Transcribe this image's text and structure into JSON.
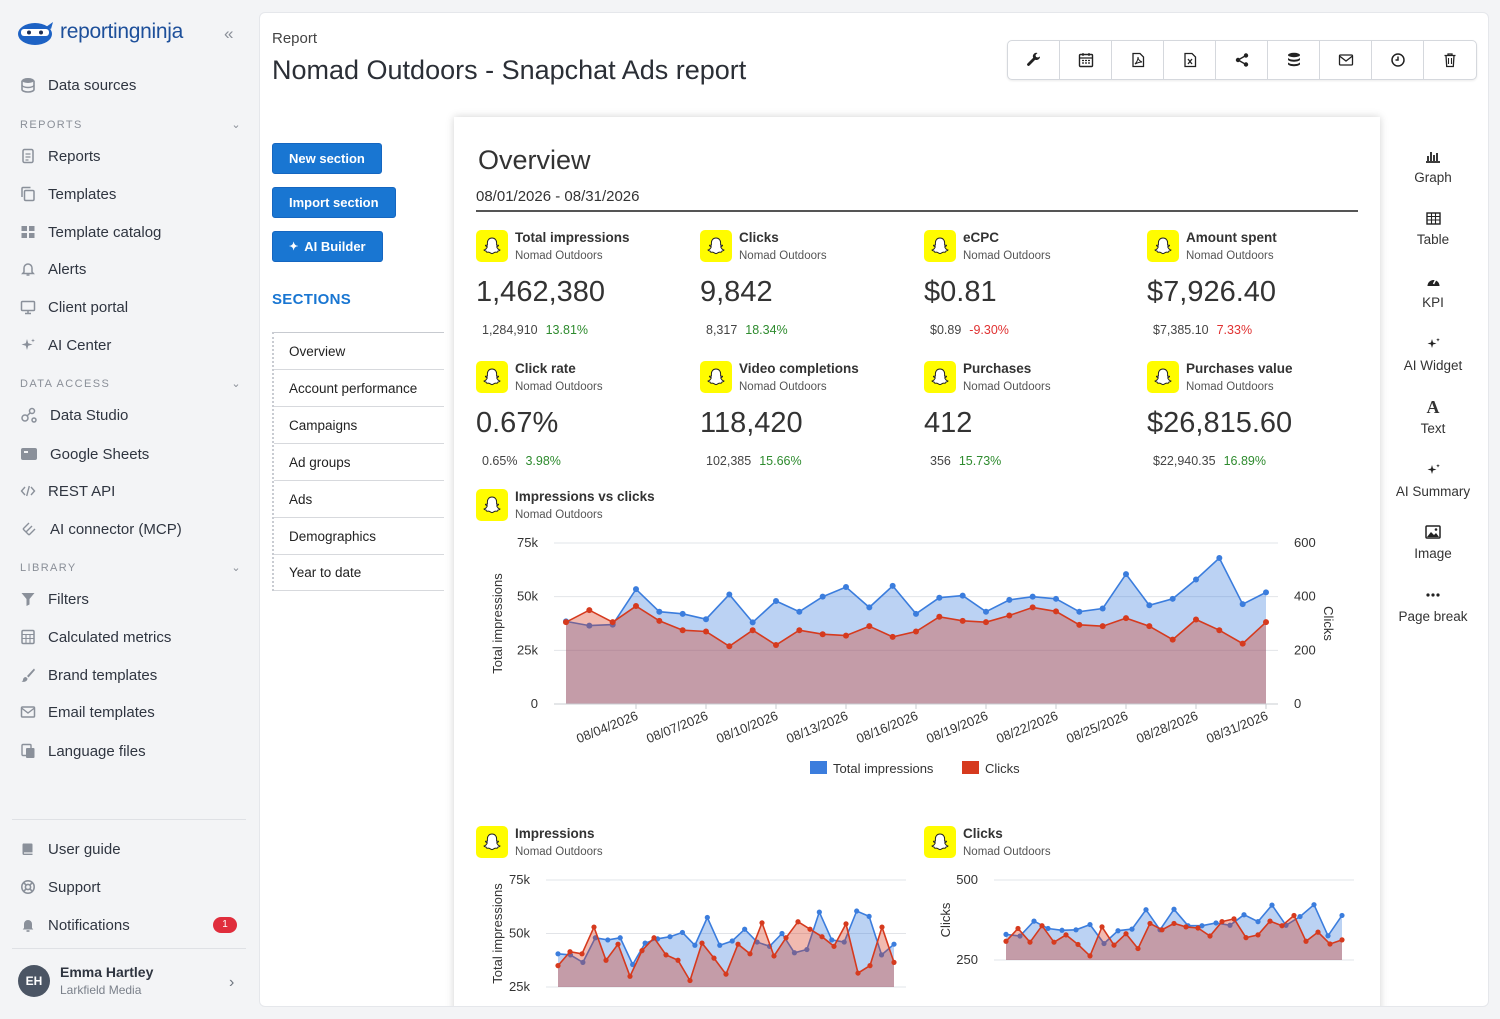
{
  "brand": {
    "name": "reportingninja"
  },
  "sidebar": {
    "data_sources": "Data sources",
    "reports_head": "REPORTS",
    "reports": "Reports",
    "templates": "Templates",
    "template_catalog": "Template catalog",
    "alerts": "Alerts",
    "client_portal": "Client portal",
    "ai_center": "AI Center",
    "data_access_head": "DATA ACCESS",
    "data_studio": "Data Studio",
    "google_sheets": "Google Sheets",
    "rest_api": "REST API",
    "ai_connector": "AI connector (MCP)",
    "library_head": "LIBRARY",
    "filters": "Filters",
    "calculated_metrics": "Calculated metrics",
    "brand_templates": "Brand templates",
    "email_templates": "Email templates",
    "language_files": "Language files",
    "user_guide": "User guide",
    "support": "Support",
    "notifications": "Notifications",
    "notifications_count": "1",
    "user": {
      "initials": "EH",
      "name": "Emma Hartley",
      "org": "Larkfield Media"
    }
  },
  "header": {
    "breadcrumb": "Report",
    "title": "Nomad Outdoors - Snapchat Ads report"
  },
  "toolbar": [
    "wrench-icon",
    "calendar-icon",
    "pdf-icon",
    "excel-icon",
    "share-icon",
    "database-icon",
    "mail-icon",
    "clock-icon",
    "trash-icon"
  ],
  "actions": {
    "new_section": "New section",
    "import_section": "Import section",
    "ai_builder": "AI Builder"
  },
  "sections": {
    "title": "SECTIONS",
    "items": [
      "Overview",
      "Account performance",
      "Campaigns",
      "Ad groups",
      "Ads",
      "Demographics",
      "Year to date"
    ]
  },
  "overview": {
    "title": "Overview",
    "date_range": "08/01/2026 - 08/31/2026",
    "kpis": [
      {
        "name": "Total impressions",
        "source": "Nomad Outdoors",
        "value": "1,462,380",
        "prev": "1,284,910",
        "change": "13.81%",
        "trend": "up"
      },
      {
        "name": "Clicks",
        "source": "Nomad Outdoors",
        "value": "9,842",
        "prev": "8,317",
        "change": "18.34%",
        "trend": "up"
      },
      {
        "name": "eCPC",
        "source": "Nomad Outdoors",
        "value": "$0.81",
        "prev": "$0.89",
        "change": "-9.30%",
        "trend": "down"
      },
      {
        "name": "Amount spent",
        "source": "Nomad Outdoors",
        "value": "$7,926.40",
        "prev": "$7,385.10",
        "change": "7.33%",
        "trend": "down"
      },
      {
        "name": "Click rate",
        "source": "Nomad Outdoors",
        "value": "0.67%",
        "prev": "0.65%",
        "change": "3.98%",
        "trend": "up"
      },
      {
        "name": "Video completions",
        "source": "Nomad Outdoors",
        "value": "118,420",
        "prev": "102,385",
        "change": "15.66%",
        "trend": "up"
      },
      {
        "name": "Purchases",
        "source": "Nomad Outdoors",
        "value": "412",
        "prev": "356",
        "change": "15.73%",
        "trend": "up"
      },
      {
        "name": "Purchases value",
        "source": "Nomad Outdoors",
        "value": "$26,815.60",
        "prev": "$22,940.35",
        "change": "16.89%",
        "trend": "up"
      }
    ]
  },
  "rail": [
    "Graph",
    "Table",
    "KPI",
    "AI Widget",
    "Text",
    "AI Summary",
    "Image",
    "Page break"
  ],
  "colors": {
    "accent": "#1976d2",
    "impressions": "#3b7ddd",
    "clicks": "#d63a1e",
    "snap": "#fffc00"
  },
  "chart_data": [
    {
      "type": "area",
      "title": "Impressions vs clicks",
      "subtitle": "Nomad Outdoors",
      "ylabel": "Total impressions",
      "y2label": "Clicks",
      "ylim": [
        0,
        75000
      ],
      "y2lim": [
        0,
        600
      ],
      "yticks": [
        "0",
        "25k",
        "50k",
        "75k"
      ],
      "y2ticks": [
        "0",
        "200",
        "400",
        "600"
      ],
      "xticks": [
        "08/04/2026",
        "08/07/2026",
        "08/10/2026",
        "08/13/2026",
        "08/16/2026",
        "08/19/2026",
        "08/22/2026",
        "08/25/2026",
        "08/28/2026",
        "08/31/2026"
      ],
      "x": [
        "08/01/2026",
        "08/02/2026",
        "08/03/2026",
        "08/04/2026",
        "08/05/2026",
        "08/06/2026",
        "08/07/2026",
        "08/08/2026",
        "08/09/2026",
        "08/10/2026",
        "08/11/2026",
        "08/12/2026",
        "08/13/2026",
        "08/14/2026",
        "08/15/2026",
        "08/16/2026",
        "08/17/2026",
        "08/18/2026",
        "08/19/2026",
        "08/20/2026",
        "08/21/2026",
        "08/22/2026",
        "08/23/2026",
        "08/24/2026",
        "08/25/2026",
        "08/26/2026",
        "08/27/2026",
        "08/28/2026",
        "08/29/2026",
        "08/30/2026",
        "08/31/2026"
      ],
      "legend": "bottom",
      "series": [
        {
          "name": "Total impressions",
          "axis": "left",
          "values": [
            38500,
            36500,
            37000,
            53500,
            43000,
            42000,
            39500,
            51000,
            38000,
            48000,
            43000,
            50000,
            54500,
            45000,
            55000,
            42000,
            49500,
            50500,
            43000,
            48500,
            50000,
            49000,
            43000,
            44500,
            60500,
            46000,
            49000,
            58000,
            68000,
            46500,
            52000
          ]
        },
        {
          "name": "Clicks",
          "axis": "right",
          "values": [
            305,
            350,
            305,
            365,
            310,
            275,
            270,
            215,
            275,
            220,
            275,
            260,
            255,
            290,
            250,
            270,
            325,
            310,
            305,
            330,
            360,
            345,
            295,
            290,
            320,
            290,
            240,
            315,
            275,
            225,
            305
          ]
        }
      ]
    },
    {
      "type": "area",
      "title": "Impressions",
      "subtitle": "Nomad Outdoors",
      "ylabel": "Total impressions",
      "yticks": [
        "25k",
        "50k",
        "75k"
      ],
      "ylim": [
        25000,
        75000
      ],
      "series": [
        {
          "name": "current",
          "values": [
            40500,
            40000,
            36500,
            48000,
            47000,
            48000,
            35500,
            45500,
            47500,
            48500,
            50500,
            44500,
            57500,
            44500,
            46500,
            52000,
            46000,
            44000,
            50000,
            41000,
            42500,
            60000,
            47000,
            46000,
            60500,
            58000,
            40000,
            45000
          ]
        },
        {
          "name": "previous",
          "values": [
            35000,
            41500,
            40500,
            53000,
            37500,
            45000,
            30000,
            42000,
            48000,
            40000,
            37500,
            28000,
            45500,
            38500,
            31000,
            45000,
            40500,
            55000,
            39500,
            48000,
            55500,
            52000,
            48500,
            44000,
            54500,
            31500,
            35000,
            53000,
            36500
          ]
        }
      ]
    },
    {
      "type": "area",
      "title": "Clicks",
      "subtitle": "Nomad Outdoors",
      "ylabel": "Clicks",
      "yticks": [
        "250",
        "500"
      ],
      "ylim": [
        150,
        500
      ],
      "series": [
        {
          "name": "current",
          "values": [
            262,
            255,
            320,
            288,
            280,
            282,
            305,
            222,
            278,
            285,
            370,
            282,
            372,
            300,
            300,
            312,
            302,
            348,
            318,
            390,
            302,
            340,
            392,
            256,
            345
          ]
        },
        {
          "name": "previous",
          "values": [
            232,
            288,
            228,
            300,
            228,
            260,
            218,
            168,
            295,
            215,
            265,
            200,
            310,
            282,
            310,
            295,
            290,
            255,
            318,
            330,
            248,
            260,
            320,
            300,
            345,
            232,
            272,
            220,
            238
          ]
        }
      ]
    }
  ]
}
